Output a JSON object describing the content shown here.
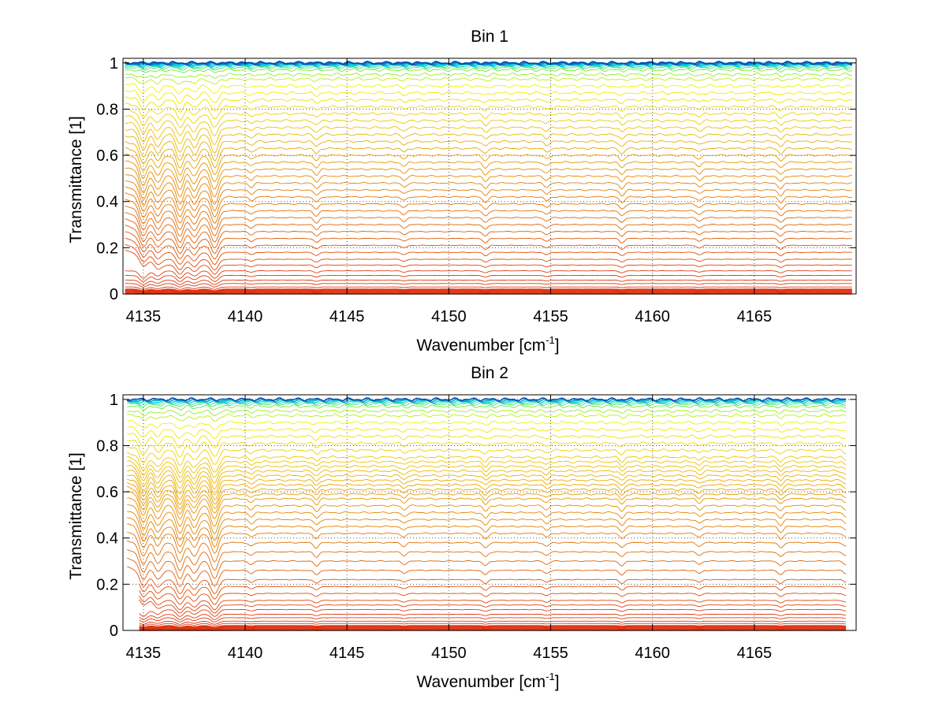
{
  "chart_data": [
    {
      "type": "line",
      "title": "Bin 1",
      "xlabel": "Wavenumber [cm",
      "xlabel_sup": "-1",
      "xlabel_end": "]",
      "ylabel": "Transmittance [1]",
      "xlim": [
        4134,
        4170
      ],
      "ylim": [
        0,
        1.02
      ],
      "xticks": [
        4135,
        4140,
        4145,
        4150,
        4155,
        4160,
        4165
      ],
      "yticks": [
        0,
        0.2,
        0.4,
        0.6,
        0.8,
        1
      ],
      "ytick_labels": [
        "0",
        "0.2",
        "0.4",
        "0.6",
        "0.8",
        "1"
      ],
      "grid": "dotted",
      "series_levels": [
        0.0,
        0.005,
        0.01,
        0.015,
        0.02,
        0.03,
        0.045,
        0.06,
        0.08,
        0.1,
        0.125,
        0.15,
        0.18,
        0.21,
        0.24,
        0.27,
        0.3,
        0.33,
        0.36,
        0.39,
        0.42,
        0.45,
        0.48,
        0.51,
        0.54,
        0.57,
        0.6,
        0.63,
        0.66,
        0.69,
        0.72,
        0.75,
        0.78,
        0.81,
        0.84,
        0.87,
        0.9,
        0.93,
        0.95,
        0.97,
        0.98,
        0.985,
        0.99,
        0.993,
        0.996,
        0.998,
        1.0
      ],
      "absorption_lines_cm-1": [
        4135.0,
        4135.7,
        4136.8,
        4137.5,
        4138.5,
        4140.3,
        4143.5,
        4147.8,
        4151.8,
        4154.8,
        4158.5,
        4162.3,
        4166.3
      ]
    },
    {
      "type": "line",
      "title": "Bin 2",
      "xlabel": "Wavenumber [cm",
      "xlabel_sup": "-1",
      "xlabel_end": "]",
      "ylabel": "Transmittance [1]",
      "xlim": [
        4134,
        4170
      ],
      "ylim": [
        0,
        1.02
      ],
      "xticks": [
        4135,
        4140,
        4145,
        4150,
        4155,
        4160,
        4165
      ],
      "yticks": [
        0,
        0.2,
        0.4,
        0.6,
        0.8,
        1
      ],
      "ytick_labels": [
        "0",
        "0.2",
        "0.4",
        "0.6",
        "0.8",
        "1"
      ],
      "grid": "dotted",
      "series_levels": [
        0.0,
        0.005,
        0.01,
        0.015,
        0.02,
        0.03,
        0.04,
        0.055,
        0.07,
        0.09,
        0.11,
        0.13,
        0.16,
        0.19,
        0.22,
        0.26,
        0.3,
        0.34,
        0.38,
        0.42,
        0.45,
        0.48,
        0.51,
        0.54,
        0.57,
        0.59,
        0.61,
        0.63,
        0.65,
        0.67,
        0.69,
        0.71,
        0.73,
        0.75,
        0.78,
        0.81,
        0.84,
        0.87,
        0.9,
        0.93,
        0.95,
        0.97,
        0.98,
        0.985,
        0.99,
        0.995,
        1.0
      ],
      "absorption_lines_cm-1": [
        4135.0,
        4135.7,
        4136.8,
        4137.5,
        4138.5,
        4140.3,
        4143.5,
        4147.8,
        4151.8,
        4154.8,
        4158.5,
        4162.3,
        4166.3,
        4169.5
      ]
    }
  ]
}
